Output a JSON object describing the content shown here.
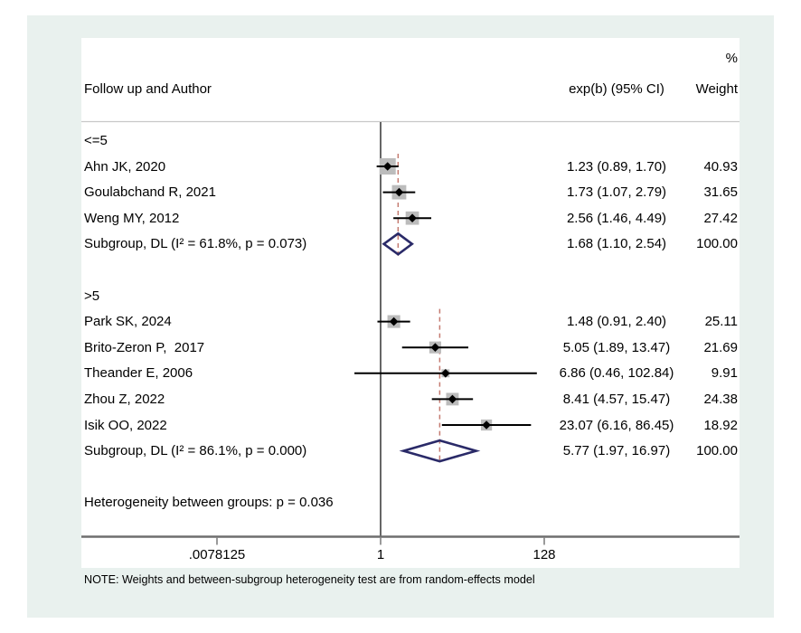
{
  "header": {
    "percent": "%",
    "col_author": "Follow up and Author",
    "col_effect": "exp(b) (95% CI)",
    "col_weight": "Weight"
  },
  "note": "NOTE: Weights and between-subgroup heterogeneity test are from random-effects model",
  "colors": {
    "figure_background": "#e9f1ee",
    "plot_background": "#ffffff",
    "separator_line": "#c8c8c8",
    "axis_line": "#6e6e6e",
    "null_line": "#000000",
    "dashed_line": "#c47a70",
    "ci_line": "#000000",
    "weight_box": "#bcbcbc",
    "point_marker": "#000000",
    "diamond_outline": "#2a2a68",
    "text": "#000000"
  },
  "chart_data": {
    "type": "forest",
    "title": "",
    "xlabel": "",
    "x_axis": {
      "scale": "log",
      "ticks": [
        ".0078125",
        "1",
        "128"
      ],
      "tick_values": [
        0.0078125,
        1,
        128
      ]
    },
    "null_value": 1,
    "groups": [
      {
        "label": "<=5",
        "studies": [
          {
            "label": "Ahn JK, 2020",
            "est": 1.23,
            "lo": 0.89,
            "hi": 1.7,
            "weight": 40.93,
            "effect_text": "1.23 (0.89, 1.70)",
            "weight_text": "40.93"
          },
          {
            "label": "Goulabchand R, 2021",
            "est": 1.73,
            "lo": 1.07,
            "hi": 2.79,
            "weight": 31.65,
            "effect_text": "1.73 (1.07, 2.79)",
            "weight_text": "31.65"
          },
          {
            "label": "Weng MY, 2012",
            "est": 2.56,
            "lo": 1.46,
            "hi": 4.49,
            "weight": 27.42,
            "effect_text": "2.56 (1.46, 4.49)",
            "weight_text": "27.42"
          }
        ],
        "subgroup": {
          "label": "Subgroup, DL (I² = 61.8%, p = 0.073)",
          "est": 1.68,
          "lo": 1.1,
          "hi": 2.54,
          "effect_text": "1.68 (1.10, 2.54)",
          "weight_text": "100.00"
        }
      },
      {
        "label": ">5",
        "studies": [
          {
            "label": "Park SK, 2024",
            "est": 1.48,
            "lo": 0.91,
            "hi": 2.4,
            "weight": 25.11,
            "effect_text": "1.48 (0.91, 2.40)",
            "weight_text": "25.11"
          },
          {
            "label": "Brito-Zeron P,  2017",
            "est": 5.05,
            "lo": 1.89,
            "hi": 13.47,
            "weight": 21.69,
            "effect_text": "5.05 (1.89, 13.47)",
            "weight_text": "21.69"
          },
          {
            "label": "Theander E, 2006",
            "est": 6.86,
            "lo": 0.46,
            "hi": 102.84,
            "weight": 9.91,
            "effect_text": "6.86 (0.46, 102.84)",
            "weight_text": "9.91"
          },
          {
            "label": "Zhou Z, 2022",
            "est": 8.41,
            "lo": 4.57,
            "hi": 15.47,
            "weight": 24.38,
            "effect_text": "8.41 (4.57, 15.47)",
            "weight_text": "24.38"
          },
          {
            "label": "Isik OO, 2022",
            "est": 23.07,
            "lo": 6.16,
            "hi": 86.45,
            "weight": 18.92,
            "effect_text": "23.07 (6.16, 86.45)",
            "weight_text": "18.92"
          }
        ],
        "subgroup": {
          "label": "Subgroup, DL (I² = 86.1%, p = 0.000)",
          "est": 5.77,
          "lo": 1.97,
          "hi": 16.97,
          "effect_text": "5.77 (1.97, 16.97)",
          "weight_text": "100.00"
        }
      }
    ],
    "heterogeneity_text": "Heterogeneity between groups: p = 0.036"
  }
}
